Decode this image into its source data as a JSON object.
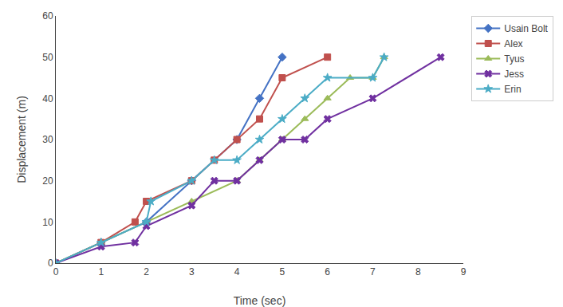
{
  "chart_data": {
    "type": "line",
    "xlabel": "Time (sec)",
    "ylabel": "Displacement (m)",
    "xlim": [
      0,
      9
    ],
    "ylim": [
      0,
      60
    ],
    "xticks": [
      0,
      1,
      2,
      3,
      4,
      5,
      6,
      7,
      8,
      9
    ],
    "yticks": [
      0,
      10,
      20,
      30,
      40,
      50,
      60
    ],
    "grid": false,
    "legend": "upper right",
    "series": [
      {
        "name": "Usain Bolt",
        "color": "#4472C4",
        "marker": "diamond",
        "x": [
          0,
          1,
          2,
          3,
          4,
          4.5,
          5
        ],
        "values": [
          0,
          5,
          10,
          20,
          30,
          40,
          50
        ]
      },
      {
        "name": "Alex",
        "color": "#C0504D",
        "marker": "square",
        "x": [
          0,
          1,
          1.75,
          2,
          3,
          3.5,
          4,
          4.5,
          5,
          6
        ],
        "values": [
          0,
          5,
          10,
          15,
          20,
          25,
          30,
          35,
          45,
          50
        ]
      },
      {
        "name": "Tyus",
        "color": "#9BBB59",
        "marker": "triangle-up",
        "x": [
          0,
          1,
          2,
          3,
          4,
          4.5,
          5,
          5.5,
          6,
          6.5,
          7,
          7.25
        ],
        "values": [
          0,
          5,
          10,
          15,
          20,
          25,
          30,
          35,
          40,
          45,
          45,
          50
        ]
      },
      {
        "name": "Jess",
        "color": "#7030A0",
        "marker": "x",
        "x": [
          0,
          1,
          1.75,
          2,
          3,
          3.5,
          4,
          4.5,
          5,
          5.5,
          6,
          7,
          8.5
        ],
        "values": [
          0,
          4,
          5,
          9,
          14,
          20,
          20,
          25,
          30,
          30,
          35,
          40,
          50
        ]
      },
      {
        "name": "Erin",
        "color": "#4BACC6",
        "marker": "star",
        "x": [
          0,
          1,
          2,
          2.1,
          3,
          3.5,
          4,
          4.5,
          5,
          5.5,
          6,
          7,
          7.25
        ],
        "values": [
          0,
          5,
          10,
          15,
          20,
          25,
          25,
          30,
          35,
          40,
          45,
          45,
          50
        ]
      }
    ]
  }
}
